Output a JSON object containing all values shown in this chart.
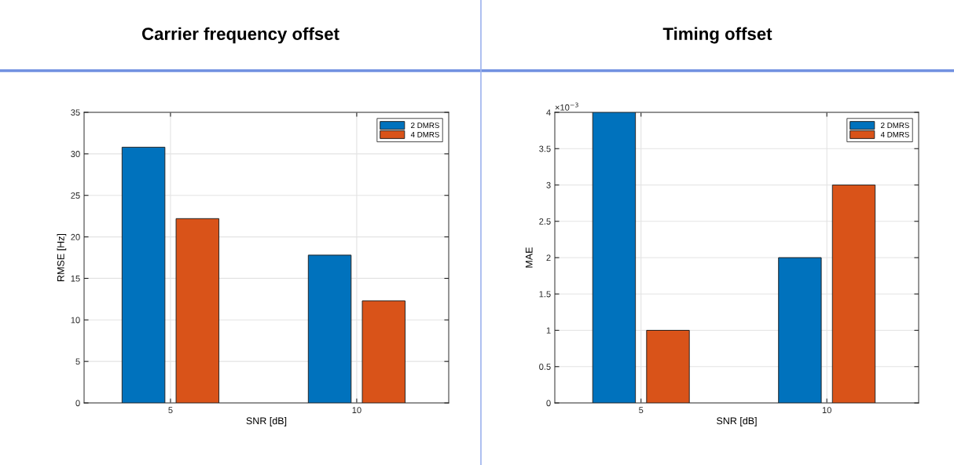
{
  "chart_data": [
    {
      "type": "bar",
      "title": "Carrier frequency offset",
      "xlabel": "SNR [dB]",
      "ylabel": "RMSE [Hz]",
      "categories": [
        "5",
        "10"
      ],
      "series": [
        {
          "name": "2 DMRS",
          "color": "#0072bd",
          "values": [
            30.8,
            17.8
          ]
        },
        {
          "name": "4 DMRS",
          "color": "#d95319",
          "values": [
            22.2,
            12.3
          ]
        }
      ],
      "ylim": [
        0,
        35
      ],
      "yticks": [
        0,
        5,
        10,
        15,
        20,
        25,
        30,
        35
      ],
      "grid": true,
      "legend": "top right"
    },
    {
      "type": "bar",
      "title": "Timing offset",
      "xlabel": "SNR [dB]",
      "ylabel": "MAE",
      "categories": [
        "5",
        "10"
      ],
      "series": [
        {
          "name": "2 DMRS",
          "color": "#0072bd",
          "values": [
            4,
            2
          ]
        },
        {
          "name": "4 DMRS",
          "color": "#d95319",
          "values": [
            1,
            3
          ]
        }
      ],
      "ylim": [
        0,
        4
      ],
      "yticks": [
        0,
        0.5,
        1,
        1.5,
        2,
        2.5,
        3,
        3.5,
        4
      ],
      "annotations": [
        "×10$^{−3}$"
      ],
      "grid": true,
      "legend": "top right"
    }
  ]
}
